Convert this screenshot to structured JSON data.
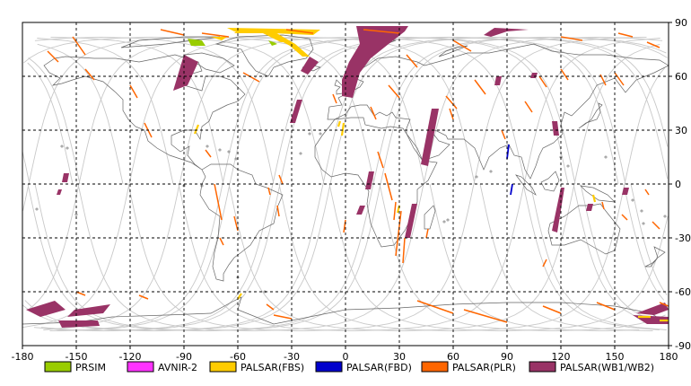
{
  "map": {
    "x_ticks": [
      "-180",
      "-150",
      "-120",
      "-90",
      "-60",
      "-30",
      "0",
      "30",
      "60",
      "90",
      "120",
      "150",
      "180"
    ],
    "y_ticks": [
      "90",
      "60",
      "30",
      "0",
      "-30",
      "-60",
      "-90"
    ],
    "lon_range": [
      -180,
      180
    ],
    "lat_range": [
      -90,
      90
    ],
    "grid": "dashed"
  },
  "legend": [
    {
      "key": "prsim",
      "label": "PRSIM",
      "color": "#99cc00"
    },
    {
      "key": "avnir2",
      "label": "AVNIR-2",
      "color": "#ff33ff"
    },
    {
      "key": "fbs",
      "label": "PALSAR(FBS)",
      "color": "#ffcc00"
    },
    {
      "key": "fbd",
      "label": "PALSAR(FBD)",
      "color": "#0000cc"
    },
    {
      "key": "plr",
      "label": "PALSAR(PLR)",
      "color": "#ff6600"
    },
    {
      "key": "wb",
      "label": "PALSAR(WB1/WB2)",
      "color": "#993366"
    }
  ],
  "colors": {
    "orbit": "#c8c8c8",
    "coast": "#666666",
    "grid": "#000000",
    "frame": "#000000"
  }
}
